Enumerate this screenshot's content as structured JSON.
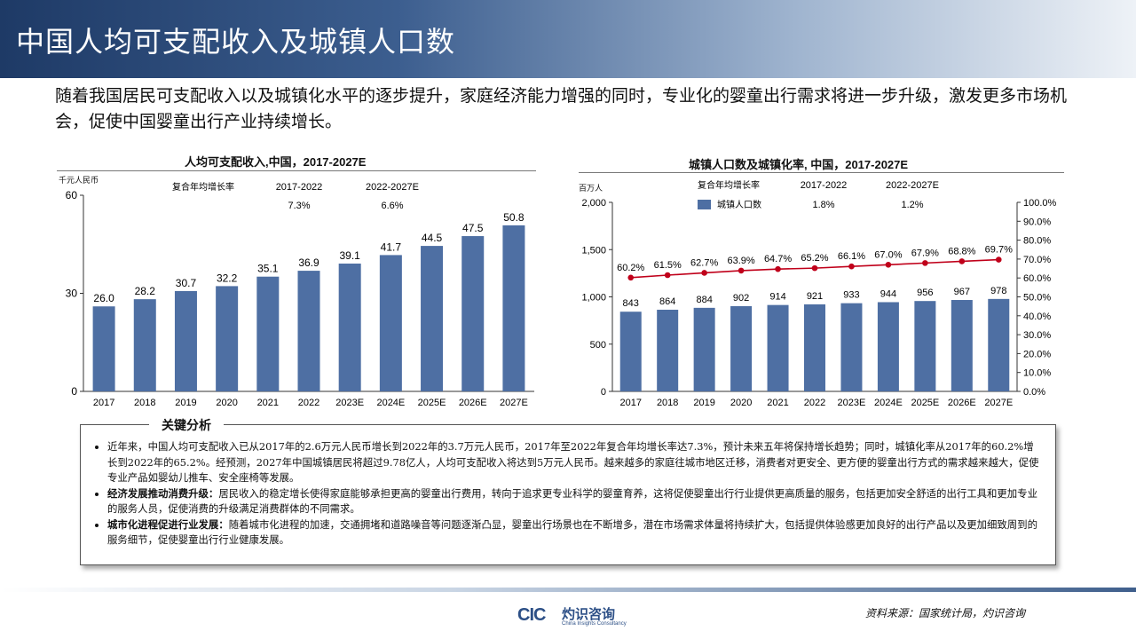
{
  "header": {
    "title": "中国人均可支配收入及城镇人口数"
  },
  "intro": "随着我国居民可支配收入以及城镇化水平的逐步提升，家庭经济能力增强的同时，专业化的婴童出行需求将进一步升级，激发更多市场机会，促使中国婴童出行产业持续增长。",
  "colors": {
    "bar": "#4e6fa3",
    "line": "#c0001a",
    "header_dark": "#1e3a66"
  },
  "chart_data": [
    {
      "type": "bar",
      "title": "人均可支配收入,中国，2017-2027E",
      "unit": "千元人民币",
      "categories": [
        "2017",
        "2018",
        "2019",
        "2020",
        "2021",
        "2022",
        "2023E",
        "2024E",
        "2025E",
        "2026E",
        "2027E"
      ],
      "values": [
        26.0,
        28.2,
        30.7,
        32.2,
        35.1,
        36.9,
        39.1,
        41.7,
        44.5,
        47.5,
        50.8
      ],
      "value_labels": [
        "26.0",
        "28.2",
        "30.7",
        "32.2",
        "35.1",
        "36.9",
        "39.1",
        "41.7",
        "44.5",
        "47.5",
        "50.8"
      ],
      "ylim": [
        0,
        60
      ],
      "yticks": [
        0,
        30,
        60
      ],
      "cagr": {
        "label": "复合年均增长率",
        "periods": [
          "2017-2022",
          "2022-2027E"
        ],
        "values": [
          "7.3%",
          "6.6%"
        ]
      }
    },
    {
      "type": "bar+line",
      "title": "城镇人口数及城镇化率, 中国，2017-2027E",
      "unit": "百万人",
      "categories": [
        "2017",
        "2018",
        "2019",
        "2020",
        "2021",
        "2022",
        "2023E",
        "2024E",
        "2025E",
        "2026E",
        "2027E"
      ],
      "series": [
        {
          "name": "城镇人口数",
          "type": "bar",
          "axis": "left",
          "values": [
            843,
            864,
            884,
            902,
            914,
            921,
            933,
            944,
            956,
            967,
            978
          ],
          "value_labels": [
            "843",
            "864",
            "884",
            "902",
            "914",
            "921",
            "933",
            "944",
            "956",
            "967",
            "978"
          ]
        },
        {
          "type": "line",
          "axis": "right",
          "values": [
            60.2,
            61.5,
            62.7,
            63.9,
            64.7,
            65.2,
            66.1,
            67.0,
            67.9,
            68.8,
            69.7
          ],
          "value_labels": [
            "60.2%",
            "61.5%",
            "62.7%",
            "63.9%",
            "64.7%",
            "65.2%",
            "66.1%",
            "67.0%",
            "67.9%",
            "68.8%",
            "69.7%"
          ]
        }
      ],
      "ylim_left": [
        0,
        2000
      ],
      "yticks_left": [
        "0",
        "500",
        "1,000",
        "1,500",
        "2,000"
      ],
      "ylim_right": [
        0,
        100
      ],
      "yticks_right": [
        "0.0%",
        "10.0%",
        "20.0%",
        "30.0%",
        "40.0%",
        "50.0%",
        "60.0%",
        "70.0%",
        "80.0%",
        "90.0%",
        "100.0%"
      ],
      "legend_position": "top-left",
      "cagr": {
        "label": "复合年均增长率",
        "periods": [
          "2017-2022",
          "2022-2027E"
        ],
        "values": [
          "1.8%",
          "1.2%"
        ]
      }
    }
  ],
  "analysis": {
    "title": "关键分析",
    "p1": "近年来，中国人均可支配收入已从2017年的2.6万元人民币增长到2022年的3.7万元人民币，2017年至2022年复合年均增长率达7.3%，预计未来五年将保持增长趋势；同时，城镇化率从2017年的60.2%增长到2022年的65.2%。经预测，2027年中国城镇居民将超过9.78亿人，人均可支配收入将达到5万元人民币。越来越多的家庭往城市地区迁移，消费者对更安全、更方便的婴童出行方式的需求越来越大，促使专业产品如婴幼儿推车、安全座椅等发展。",
    "p2_head": "经济发展推动消费升级：",
    "p2_body": "居民收入的稳定增长使得家庭能够承担更高的婴童出行费用，转向于追求更专业科学的婴童育养，这将促使婴童出行行业提供更高质量的服务，包括更加安全舒适的出行工具和更加专业的服务人员，促使消费的升级满足消费群体的不同需求。",
    "p3_head": "城市化进程促进行业发展：",
    "p3_body": "随着城市化进程的加速，交通拥堵和道路噪音等问题逐渐凸显，婴童出行场景也在不断增多，潜在市场需求体量将持续扩大，包括提供体验感更加良好的出行产品以及更加细致周到的服务细节，促使婴童出行行业健康发展。"
  },
  "footer": {
    "logo_mark": "CIC",
    "logo_cn": "灼识咨询",
    "logo_en": "China Insights Consultancy",
    "source": "资料来源：国家统计局，灼识咨询"
  }
}
